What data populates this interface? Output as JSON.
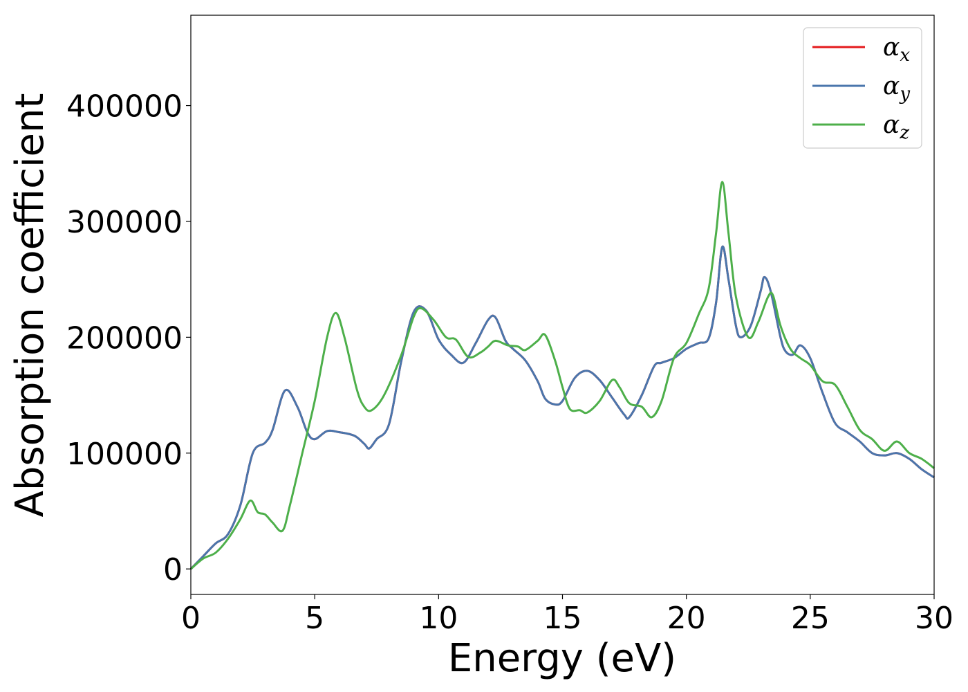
{
  "chart_data": {
    "type": "line",
    "title": "",
    "xlabel": "Energy (eV)",
    "ylabel": "Absorption coefficient",
    "xlim": [
      0,
      30
    ],
    "ylim": [
      -22000,
      478000
    ],
    "xticks": [
      0,
      5,
      10,
      15,
      20,
      25,
      30
    ],
    "xtick_labels": [
      "0",
      "5",
      "10",
      "15",
      "20",
      "25",
      "30"
    ],
    "yticks": [
      0,
      100000,
      200000,
      300000,
      400000
    ],
    "ytick_labels": [
      "0",
      "100000",
      "200000",
      "300000",
      "400000"
    ],
    "grid": false,
    "legend_position": "top-right",
    "series": [
      {
        "name": "α_x",
        "label_main": "α",
        "label_sub": "x",
        "color": "#e41a1c",
        "x": [
          0,
          0.5,
          1,
          1.5,
          2,
          2.5,
          3,
          3.3,
          3.8,
          4.3,
          4.7,
          5,
          5.5,
          6,
          6.6,
          7,
          7.2,
          7.5,
          8,
          8.5,
          9,
          9.5,
          10,
          10.5,
          11,
          11.5,
          12,
          12.3,
          12.7,
          13,
          13.5,
          14,
          14.3,
          14.7,
          15,
          15.5,
          16,
          16.5,
          17,
          17.5,
          17.7,
          18.2,
          18.7,
          19,
          19.5,
          20,
          20.5,
          20.9,
          21.2,
          21.45,
          21.7,
          22,
          22.2,
          22.6,
          23,
          23.15,
          23.4,
          23.8,
          24,
          24.3,
          24.6,
          25,
          25.5,
          26,
          26.5,
          27,
          27.5,
          28,
          28.5,
          29,
          29.5,
          30
        ],
        "values": [
          0,
          11000,
          22000,
          30000,
          55000,
          100000,
          109000,
          120000,
          154000,
          140000,
          118000,
          112000,
          119000,
          118000,
          115000,
          108000,
          104000,
          112000,
          125000,
          180000,
          222000,
          223000,
          198000,
          185000,
          178000,
          195000,
          215000,
          217000,
          197000,
          190000,
          180000,
          162000,
          147000,
          142000,
          145000,
          165000,
          171000,
          163000,
          148000,
          133000,
          131000,
          150000,
          175000,
          178000,
          182000,
          190000,
          195000,
          199000,
          230000,
          278000,
          250000,
          210000,
          200000,
          210000,
          240000,
          252000,
          240000,
          200000,
          188000,
          185000,
          193000,
          182000,
          152000,
          126000,
          118000,
          110000,
          100000,
          98000,
          100000,
          95000,
          86000,
          79000
        ]
      },
      {
        "name": "α_y",
        "label_main": "α",
        "label_sub": "y",
        "color": "#4a76ac",
        "x": [
          0,
          0.5,
          1,
          1.5,
          2,
          2.5,
          3,
          3.3,
          3.8,
          4.3,
          4.7,
          5,
          5.5,
          6,
          6.6,
          7,
          7.2,
          7.5,
          8,
          8.5,
          9,
          9.5,
          10,
          10.5,
          11,
          11.5,
          12,
          12.3,
          12.7,
          13,
          13.5,
          14,
          14.3,
          14.7,
          15,
          15.5,
          16,
          16.5,
          17,
          17.5,
          17.7,
          18.2,
          18.7,
          19,
          19.5,
          20,
          20.5,
          20.9,
          21.2,
          21.45,
          21.7,
          22,
          22.2,
          22.6,
          23,
          23.15,
          23.4,
          23.8,
          24,
          24.3,
          24.6,
          25,
          25.5,
          26,
          26.5,
          27,
          27.5,
          28,
          28.5,
          29,
          29.5,
          30
        ],
        "values": [
          0,
          11000,
          22000,
          30000,
          55000,
          100000,
          109000,
          120000,
          154000,
          140000,
          118000,
          112000,
          119000,
          118000,
          115000,
          108000,
          104000,
          112000,
          125000,
          180000,
          222000,
          223000,
          198000,
          185000,
          178000,
          195000,
          215000,
          217000,
          197000,
          190000,
          180000,
          162000,
          147000,
          142000,
          145000,
          165000,
          171000,
          163000,
          148000,
          133000,
          131000,
          150000,
          175000,
          178000,
          182000,
          190000,
          195000,
          199000,
          230000,
          278000,
          250000,
          210000,
          200000,
          210000,
          240000,
          252000,
          240000,
          200000,
          188000,
          185000,
          193000,
          182000,
          152000,
          126000,
          118000,
          110000,
          100000,
          98000,
          100000,
          95000,
          86000,
          79000
        ]
      },
      {
        "name": "α_z",
        "label_main": "α",
        "label_sub": "z",
        "color": "#4daf4a",
        "x": [
          0,
          0.5,
          1,
          1.5,
          2,
          2.4,
          2.7,
          3,
          3.3,
          3.7,
          4,
          4.5,
          5,
          5.5,
          5.85,
          6.2,
          6.7,
          7,
          7.3,
          7.8,
          8.5,
          9,
          9.3,
          9.8,
          10.3,
          10.7,
          11.2,
          11.7,
          12,
          12.3,
          12.8,
          13.2,
          13.5,
          14,
          14.3,
          14.7,
          15,
          15.3,
          15.7,
          16,
          16.5,
          17,
          17.3,
          17.7,
          18.2,
          18.6,
          19,
          19.5,
          20,
          20.5,
          20.9,
          21.2,
          21.45,
          21.7,
          22,
          22.5,
          22.9,
          23.3,
          23.5,
          23.8,
          24.2,
          24.6,
          25,
          25.5,
          26,
          26.5,
          27,
          27.5,
          28,
          28.5,
          29,
          29.5,
          30
        ],
        "values": [
          0,
          9000,
          14000,
          26000,
          43000,
          59000,
          49000,
          47000,
          40000,
          33000,
          55000,
          100000,
          145000,
          200000,
          221000,
          200000,
          155000,
          140000,
          137000,
          150000,
          185000,
          218000,
          225000,
          215000,
          200000,
          198000,
          183000,
          187000,
          192000,
          197000,
          193000,
          192000,
          189000,
          197000,
          202000,
          180000,
          157000,
          138000,
          137000,
          135000,
          145000,
          163000,
          157000,
          143000,
          140000,
          131000,
          145000,
          182000,
          195000,
          220000,
          242000,
          290000,
          334000,
          290000,
          235000,
          200000,
          213000,
          235000,
          236000,
          210000,
          190000,
          182000,
          176000,
          162000,
          159000,
          140000,
          120000,
          112000,
          102000,
          110000,
          100000,
          95000,
          87000
        ]
      }
    ]
  }
}
